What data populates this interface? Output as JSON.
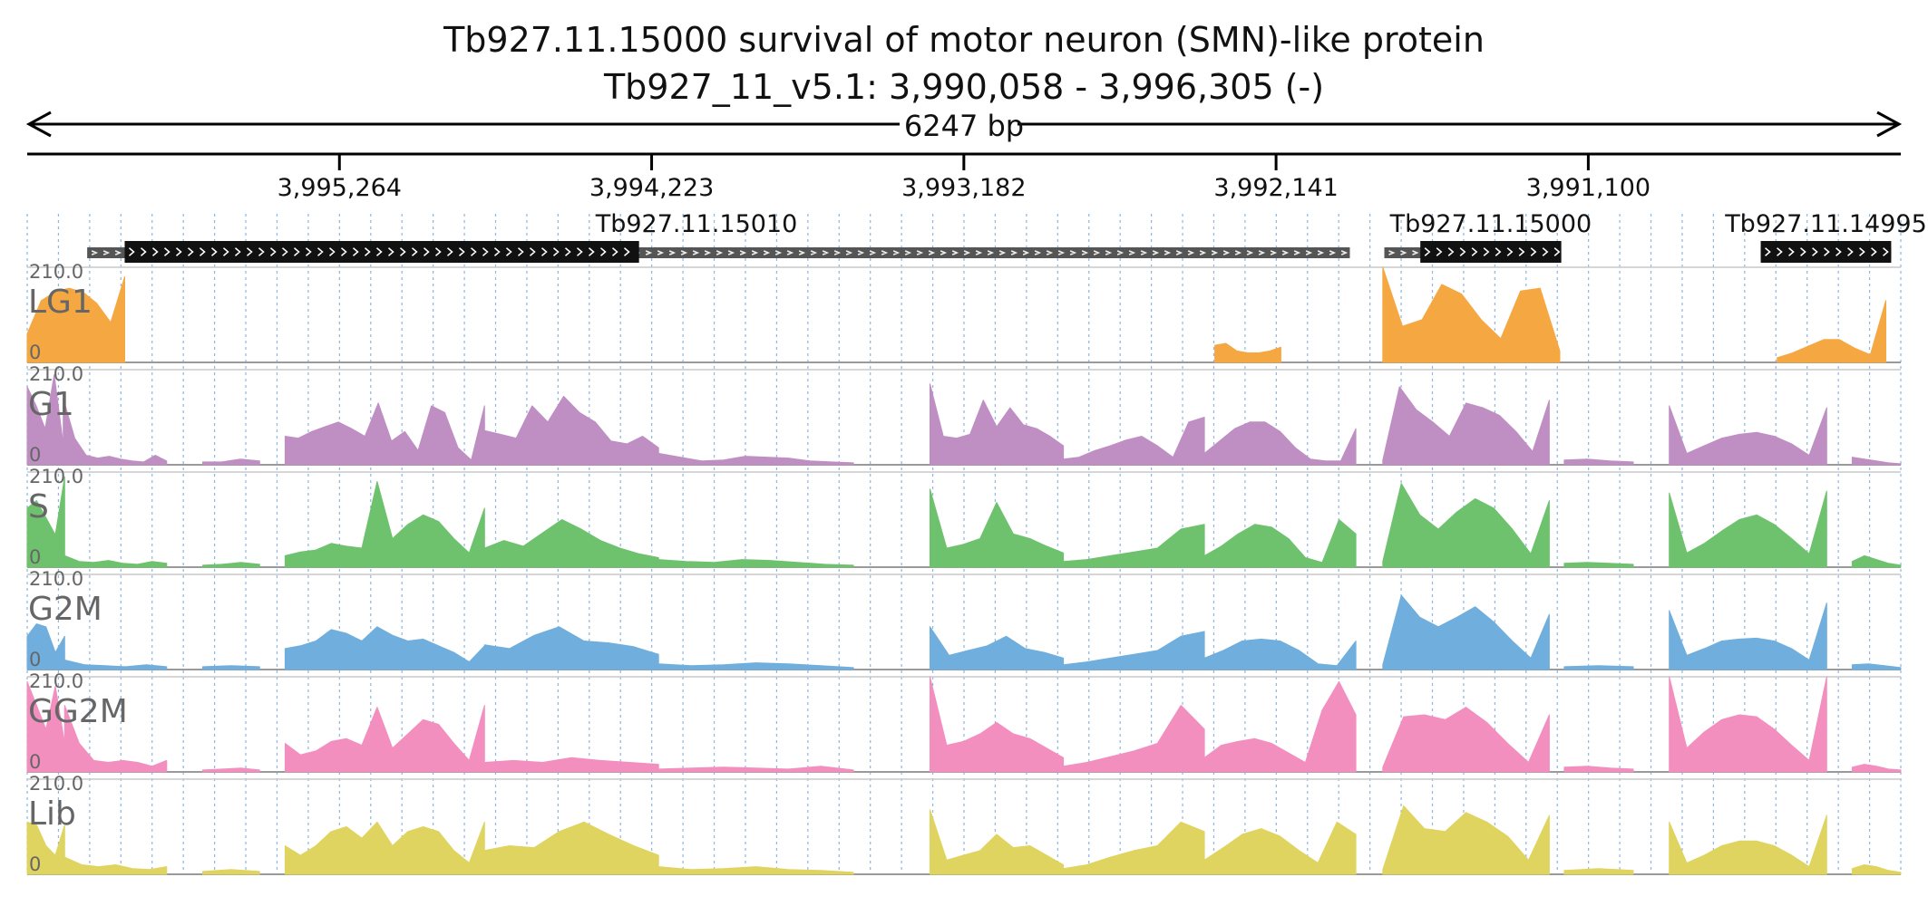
{
  "header": {
    "title": "Tb927.11.15000  survival of motor neuron (SMN)-like protein",
    "locus": "Tb927_11_v5.1: 3,990,058 - 3,996,305 (-)",
    "span_label": "6247 bp"
  },
  "ruler": {
    "start": 3996305,
    "end": 3990058,
    "ticks": [
      {
        "value": 3995264,
        "label": "3,995,264"
      },
      {
        "value": 3994223,
        "label": "3,994,223"
      },
      {
        "value": 3993182,
        "label": "3,993,182"
      },
      {
        "value": 3992141,
        "label": "3,992,141"
      },
      {
        "value": 3991100,
        "label": "3,991,100"
      }
    ]
  },
  "genes": [
    {
      "name": "Tb927.11.15010",
      "utr": [
        3996105,
        3991895
      ],
      "cds": [
        3995980,
        3994265
      ]
    },
    {
      "name": "Tb927.11.15000",
      "utr": [
        3991780,
        3991240
      ],
      "cds": [
        3991660,
        3991190
      ]
    },
    {
      "name": "Tb927.11.14995",
      "utr": [
        3990525,
        3990090
      ],
      "cds": [
        3990525,
        3990090
      ]
    }
  ],
  "tracks": [
    {
      "name": "LG1",
      "color": "#F5A742",
      "max_label": "210.0",
      "min_label": "0",
      "segments": [
        {
          "a": 3996305,
          "b": 3995980,
          "h": [
            0.3,
            0.65,
            0.74,
            0.78,
            0.74,
            0.62,
            0.42,
            0.9
          ]
        },
        {
          "a": 3992345,
          "b": 3992125,
          "h": [
            0.18,
            0.2,
            0.12,
            0.1,
            0.1,
            0.12,
            0.16
          ]
        },
        {
          "a": 3991785,
          "b": 3991195,
          "h": [
            1.0,
            0.38,
            0.45,
            0.82,
            0.72,
            0.45,
            0.25,
            0.75,
            0.78,
            0.12
          ]
        },
        {
          "a": 3990470,
          "b": 3990108,
          "h": [
            0.05,
            0.1,
            0.17,
            0.24,
            0.24,
            0.15,
            0.08,
            0.65
          ]
        }
      ]
    },
    {
      "name": "G1",
      "color": "#BF8FC4",
      "max_label": "210.0",
      "min_label": "0",
      "segments": [
        {
          "a": 3996305,
          "b": 3996185,
          "h": [
            0.82,
            0.62,
            0.38,
            0.95,
            0.22
          ]
        },
        {
          "a": 3996185,
          "b": 3995840,
          "h": [
            0.7,
            0.28,
            0.1,
            0.07,
            0.09,
            0.06,
            0.04,
            0.03,
            0.1,
            0.04
          ]
        },
        {
          "a": 3995720,
          "b": 3995530,
          "h": [
            0.03,
            0.03,
            0.06,
            0.04
          ]
        },
        {
          "a": 3995445,
          "b": 3994780,
          "h": [
            0.3,
            0.28,
            0.35,
            0.4,
            0.45,
            0.38,
            0.3,
            0.65,
            0.25,
            0.35,
            0.15,
            0.62,
            0.55,
            0.18,
            0.05,
            0.62
          ]
        },
        {
          "a": 3994780,
          "b": 3994200,
          "h": [
            0.36,
            0.32,
            0.28,
            0.62,
            0.45,
            0.72,
            0.55,
            0.45,
            0.25,
            0.22,
            0.3,
            0.18
          ]
        },
        {
          "a": 3994200,
          "b": 3993550,
          "h": [
            0.12,
            0.08,
            0.04,
            0.05,
            0.09,
            0.08,
            0.07,
            0.04,
            0.03,
            0.02
          ]
        },
        {
          "a": 3993295,
          "b": 3992850,
          "h": [
            0.85,
            0.3,
            0.28,
            0.32,
            0.68,
            0.4,
            0.6,
            0.42,
            0.38,
            0.3,
            0.2
          ]
        },
        {
          "a": 3992850,
          "b": 3992380,
          "h": [
            0.06,
            0.08,
            0.15,
            0.2,
            0.26,
            0.3,
            0.2,
            0.08,
            0.45,
            0.5
          ]
        },
        {
          "a": 3992380,
          "b": 3991875,
          "h": [
            0.12,
            0.25,
            0.38,
            0.45,
            0.45,
            0.35,
            0.18,
            0.06,
            0.04,
            0.04,
            0.38
          ]
        },
        {
          "a": 3991785,
          "b": 3991230,
          "h": [
            0.05,
            0.82,
            0.58,
            0.45,
            0.3,
            0.65,
            0.6,
            0.52,
            0.35,
            0.14,
            0.68
          ]
        },
        {
          "a": 3991180,
          "b": 3990950,
          "h": [
            0.05,
            0.06,
            0.04,
            0.03
          ]
        },
        {
          "a": 3990830,
          "b": 3990305,
          "h": [
            0.62,
            0.12,
            0.2,
            0.28,
            0.32,
            0.34,
            0.3,
            0.22,
            0.1,
            0.6
          ]
        },
        {
          "a": 3990220,
          "b": 3990058,
          "h": [
            0.08,
            0.06,
            0.04,
            0.02,
            0.01
          ]
        }
      ]
    },
    {
      "name": "S",
      "color": "#6EC26E",
      "max_label": "210.0",
      "min_label": "0",
      "segments": [
        {
          "a": 3996305,
          "b": 3996180,
          "h": [
            0.62,
            0.7,
            0.52,
            0.34,
            0.95
          ]
        },
        {
          "a": 3996180,
          "b": 3995840,
          "h": [
            0.12,
            0.06,
            0.05,
            0.07,
            0.04,
            0.03,
            0.06,
            0.04
          ]
        },
        {
          "a": 3995720,
          "b": 3995530,
          "h": [
            0.02,
            0.03,
            0.05,
            0.03
          ]
        },
        {
          "a": 3995445,
          "b": 3994780,
          "h": [
            0.12,
            0.16,
            0.18,
            0.25,
            0.22,
            0.2,
            0.9,
            0.3,
            0.45,
            0.55,
            0.48,
            0.3,
            0.15,
            0.62
          ]
        },
        {
          "a": 3994780,
          "b": 3994200,
          "h": [
            0.2,
            0.28,
            0.22,
            0.36,
            0.5,
            0.4,
            0.28,
            0.2,
            0.14,
            0.1
          ]
        },
        {
          "a": 3994200,
          "b": 3993550,
          "h": [
            0.08,
            0.06,
            0.05,
            0.08,
            0.07,
            0.05,
            0.03,
            0.02
          ]
        },
        {
          "a": 3993295,
          "b": 3992850,
          "h": [
            0.82,
            0.2,
            0.24,
            0.3,
            0.68,
            0.35,
            0.3,
            0.22,
            0.15
          ]
        },
        {
          "a": 3992850,
          "b": 3992380,
          "h": [
            0.06,
            0.08,
            0.12,
            0.16,
            0.2,
            0.4,
            0.45
          ]
        },
        {
          "a": 3992380,
          "b": 3991875,
          "h": [
            0.12,
            0.22,
            0.35,
            0.45,
            0.42,
            0.3,
            0.1,
            0.05,
            0.5,
            0.35
          ]
        },
        {
          "a": 3991785,
          "b": 3991230,
          "h": [
            0.06,
            0.88,
            0.55,
            0.4,
            0.58,
            0.72,
            0.62,
            0.4,
            0.14,
            0.7
          ]
        },
        {
          "a": 3991180,
          "b": 3990950,
          "h": [
            0.04,
            0.05,
            0.04,
            0.03
          ]
        },
        {
          "a": 3990830,
          "b": 3990305,
          "h": [
            0.78,
            0.15,
            0.25,
            0.38,
            0.5,
            0.55,
            0.45,
            0.3,
            0.14,
            0.8
          ]
        },
        {
          "a": 3990220,
          "b": 3990058,
          "h": [
            0.06,
            0.12,
            0.08,
            0.04,
            0.02
          ]
        }
      ]
    },
    {
      "name": "G2M",
      "color": "#6FAEDD",
      "max_label": "210.0",
      "min_label": "0",
      "segments": [
        {
          "a": 3996305,
          "b": 3996180,
          "h": [
            0.35,
            0.48,
            0.45,
            0.18,
            0.35
          ]
        },
        {
          "a": 3996180,
          "b": 3995840,
          "h": [
            0.1,
            0.05,
            0.04,
            0.03,
            0.05,
            0.03
          ]
        },
        {
          "a": 3995720,
          "b": 3995530,
          "h": [
            0.03,
            0.04,
            0.03
          ]
        },
        {
          "a": 3995445,
          "b": 3994780,
          "h": [
            0.22,
            0.25,
            0.3,
            0.42,
            0.38,
            0.3,
            0.45,
            0.36,
            0.3,
            0.32,
            0.25,
            0.18,
            0.08,
            0.25
          ]
        },
        {
          "a": 3994780,
          "b": 3994200,
          "h": [
            0.26,
            0.22,
            0.36,
            0.45,
            0.3,
            0.28,
            0.24,
            0.16
          ]
        },
        {
          "a": 3994200,
          "b": 3993550,
          "h": [
            0.06,
            0.04,
            0.05,
            0.07,
            0.06,
            0.04,
            0.02
          ]
        },
        {
          "a": 3993295,
          "b": 3992850,
          "h": [
            0.45,
            0.15,
            0.2,
            0.25,
            0.35,
            0.22,
            0.18,
            0.12
          ]
        },
        {
          "a": 3992850,
          "b": 3992380,
          "h": [
            0.05,
            0.08,
            0.12,
            0.16,
            0.2,
            0.35,
            0.4
          ]
        },
        {
          "a": 3992380,
          "b": 3991875,
          "h": [
            0.12,
            0.2,
            0.3,
            0.32,
            0.3,
            0.2,
            0.06,
            0.04,
            0.3
          ]
        },
        {
          "a": 3991785,
          "b": 3991230,
          "h": [
            0.05,
            0.78,
            0.55,
            0.45,
            0.55,
            0.66,
            0.5,
            0.3,
            0.12,
            0.58
          ]
        },
        {
          "a": 3991180,
          "b": 3990950,
          "h": [
            0.03,
            0.04,
            0.03
          ]
        },
        {
          "a": 3990830,
          "b": 3990305,
          "h": [
            0.62,
            0.15,
            0.22,
            0.3,
            0.32,
            0.33,
            0.3,
            0.22,
            0.1,
            0.7
          ]
        },
        {
          "a": 3990220,
          "b": 3990058,
          "h": [
            0.05,
            0.06,
            0.04,
            0.02
          ]
        }
      ]
    },
    {
      "name": "GG2M",
      "color": "#F28FBF",
      "max_label": "210.0",
      "min_label": "0",
      "segments": [
        {
          "a": 3996305,
          "b": 3996180,
          "h": [
            0.95,
            0.7,
            0.45,
            0.9,
            0.3
          ]
        },
        {
          "a": 3996180,
          "b": 3995840,
          "h": [
            0.7,
            0.3,
            0.12,
            0.1,
            0.12,
            0.1,
            0.06,
            0.12
          ]
        },
        {
          "a": 3995720,
          "b": 3995530,
          "h": [
            0.02,
            0.03,
            0.04,
            0.02
          ]
        },
        {
          "a": 3995445,
          "b": 3994780,
          "h": [
            0.3,
            0.18,
            0.22,
            0.32,
            0.35,
            0.28,
            0.68,
            0.25,
            0.4,
            0.55,
            0.5,
            0.3,
            0.12,
            0.7
          ]
        },
        {
          "a": 3994780,
          "b": 3994200,
          "h": [
            0.1,
            0.12,
            0.1,
            0.15,
            0.12,
            0.1,
            0.08
          ]
        },
        {
          "a": 3994200,
          "b": 3993550,
          "h": [
            0.03,
            0.04,
            0.05,
            0.04,
            0.03,
            0.06,
            0.02
          ]
        },
        {
          "a": 3993295,
          "b": 3992850,
          "h": [
            1.0,
            0.28,
            0.32,
            0.4,
            0.52,
            0.4,
            0.35,
            0.25,
            0.15
          ]
        },
        {
          "a": 3992850,
          "b": 3992380,
          "h": [
            0.06,
            0.1,
            0.16,
            0.22,
            0.3,
            0.7,
            0.45
          ]
        },
        {
          "a": 3992380,
          "b": 3991875,
          "h": [
            0.15,
            0.28,
            0.32,
            0.35,
            0.3,
            0.2,
            0.1,
            0.65,
            0.95,
            0.6
          ]
        },
        {
          "a": 3991785,
          "b": 3991230,
          "h": [
            0.05,
            0.58,
            0.6,
            0.55,
            0.68,
            0.52,
            0.3,
            0.1,
            0.6
          ]
        },
        {
          "a": 3991180,
          "b": 3990950,
          "h": [
            0.05,
            0.06,
            0.04,
            0.03
          ]
        },
        {
          "a": 3990830,
          "b": 3990305,
          "h": [
            1.0,
            0.25,
            0.42,
            0.55,
            0.6,
            0.58,
            0.45,
            0.28,
            0.12,
            1.0
          ]
        },
        {
          "a": 3990220,
          "b": 3990058,
          "h": [
            0.05,
            0.08,
            0.06,
            0.03,
            0.02
          ]
        }
      ]
    },
    {
      "name": "Lib",
      "color": "#E0D460",
      "max_label": "210.0",
      "min_label": "0",
      "segments": [
        {
          "a": 3996305,
          "b": 3996180,
          "h": [
            0.55,
            0.52,
            0.3,
            0.2,
            0.52
          ]
        },
        {
          "a": 3996180,
          "b": 3995840,
          "h": [
            0.18,
            0.1,
            0.08,
            0.1,
            0.06,
            0.05,
            0.08
          ]
        },
        {
          "a": 3995720,
          "b": 3995530,
          "h": [
            0.03,
            0.05,
            0.03
          ]
        },
        {
          "a": 3995445,
          "b": 3994780,
          "h": [
            0.3,
            0.2,
            0.3,
            0.45,
            0.5,
            0.38,
            0.55,
            0.3,
            0.45,
            0.5,
            0.45,
            0.25,
            0.12,
            0.55
          ]
        },
        {
          "a": 3994780,
          "b": 3994200,
          "h": [
            0.25,
            0.3,
            0.28,
            0.45,
            0.55,
            0.42,
            0.3,
            0.2
          ]
        },
        {
          "a": 3994200,
          "b": 3993550,
          "h": [
            0.08,
            0.05,
            0.06,
            0.08,
            0.05,
            0.04,
            0.02
          ]
        },
        {
          "a": 3993295,
          "b": 3992850,
          "h": [
            0.68,
            0.15,
            0.2,
            0.25,
            0.42,
            0.28,
            0.3,
            0.2,
            0.1
          ]
        },
        {
          "a": 3992850,
          "b": 3992380,
          "h": [
            0.06,
            0.1,
            0.18,
            0.25,
            0.3,
            0.55,
            0.45
          ]
        },
        {
          "a": 3992380,
          "b": 3991875,
          "h": [
            0.15,
            0.28,
            0.42,
            0.48,
            0.4,
            0.25,
            0.12,
            0.55,
            0.42
          ]
        },
        {
          "a": 3991785,
          "b": 3991230,
          "h": [
            0.05,
            0.72,
            0.48,
            0.45,
            0.65,
            0.55,
            0.4,
            0.15,
            0.62
          ]
        },
        {
          "a": 3991180,
          "b": 3990950,
          "h": [
            0.04,
            0.06,
            0.04
          ]
        },
        {
          "a": 3990830,
          "b": 3990305,
          "h": [
            0.55,
            0.12,
            0.2,
            0.3,
            0.35,
            0.35,
            0.3,
            0.2,
            0.08,
            0.62
          ]
        },
        {
          "a": 3990220,
          "b": 3990058,
          "h": [
            0.06,
            0.1,
            0.08,
            0.04,
            0.02
          ]
        }
      ]
    }
  ]
}
